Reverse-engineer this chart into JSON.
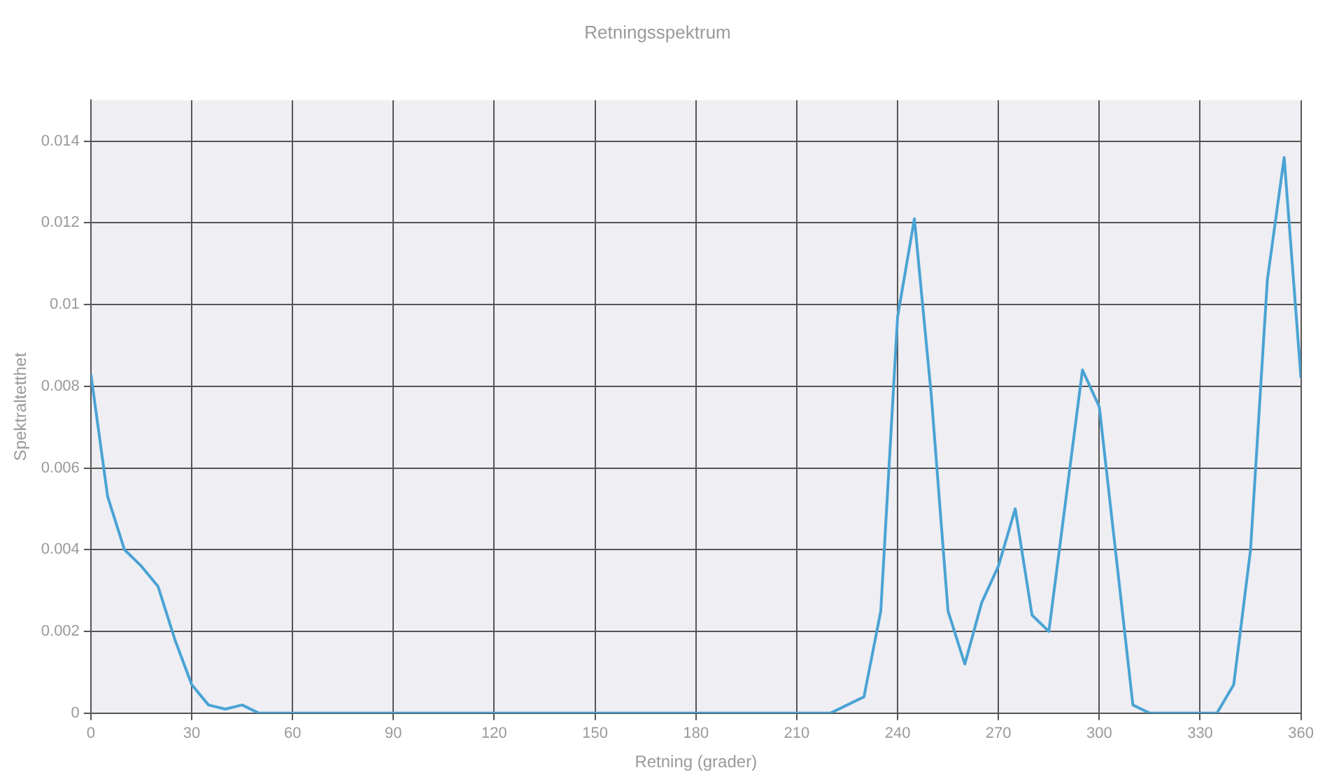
{
  "chart_data": {
    "type": "line",
    "title": "Retningsspektrum",
    "xlabel": "Retning (grader)",
    "ylabel": "Spektraltetthet",
    "x": [
      0,
      5,
      10,
      15,
      20,
      25,
      30,
      35,
      40,
      45,
      50,
      100,
      150,
      200,
      210,
      220,
      225,
      230,
      235,
      240,
      245,
      250,
      255,
      260,
      265,
      270,
      275,
      280,
      285,
      295,
      300,
      310,
      315,
      330,
      335,
      340,
      345,
      350,
      355,
      360
    ],
    "series": [
      {
        "color": "#4aa3d4",
        "values": [
          0.0083,
          0.0053,
          0.004,
          0.0036,
          0.0031,
          0.0018,
          0.0007,
          0.0002,
          0.0001,
          0.0002,
          0,
          0,
          0,
          0,
          0,
          0,
          0.0002,
          0.0004,
          0.0025,
          0.0097,
          0.0121,
          0.0078,
          0.0025,
          0.0012,
          0.0027,
          0.0036,
          0.005,
          0.0024,
          0.002,
          0.0084,
          0.0075,
          0.0002,
          0,
          0,
          0,
          0.0007,
          0.004,
          0.0106,
          0.0136,
          0.0082
        ]
      }
    ],
    "xlim": [
      0,
      360
    ],
    "xticks": [
      0,
      30,
      60,
      90,
      120,
      150,
      180,
      210,
      240,
      270,
      300,
      330,
      360
    ],
    "ylim": [
      0,
      0.015
    ],
    "yticks": [
      0,
      0.002,
      0.004,
      0.006,
      0.008,
      0.01,
      0.012,
      0.014
    ],
    "grid": true,
    "legend": false,
    "marker": "none",
    "line_style": "solid"
  }
}
